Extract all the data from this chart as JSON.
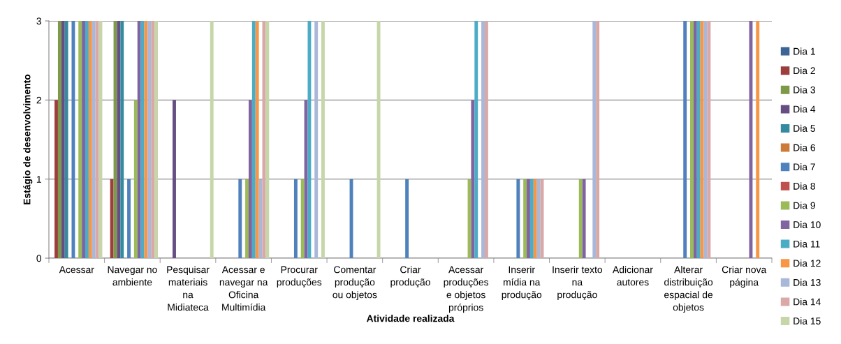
{
  "chart_data": {
    "type": "bar",
    "xlabel": "Atividade realizada",
    "ylabel": "Estágio de desenvolvimento",
    "categories": [
      "Acessar",
      "Navegar no\nambiente",
      "Pesquisar\nmateriais\nna\nMidiateca",
      "Acessar e\nnavegar na\nOficina\nMultimídia",
      "Procurar\nproduções",
      "Comentar\nprodução\nou objetos",
      "Criar\nprodução",
      "Acessar\nproduções\ne objetos\npróprios",
      "Inserir\nmídia na\nprodução",
      "Inserir texto\nna\nprodução",
      "Adicionar\nautores",
      "Alterar\ndistribuição\nespacial de\nobjetos",
      "Criar nova\npágina"
    ],
    "ylim": [
      0,
      3
    ],
    "yticks": [
      0,
      1,
      2,
      3
    ],
    "grid": "y",
    "legend": "right",
    "series": [
      {
        "name": "Dia 1",
        "color": "#3c6496",
        "values": [
          0,
          0,
          0,
          0,
          0,
          0,
          0,
          0,
          0,
          0,
          0,
          0,
          0
        ]
      },
      {
        "name": "Dia 2",
        "color": "#9c3f3c",
        "values": [
          2,
          1,
          0,
          0,
          0,
          0,
          0,
          0,
          0,
          0,
          0,
          0,
          0
        ]
      },
      {
        "name": "Dia 3",
        "color": "#7d9a48",
        "values": [
          3,
          3,
          0,
          0,
          0,
          0,
          0,
          0,
          0,
          0,
          0,
          0,
          0
        ]
      },
      {
        "name": "Dia 4",
        "color": "#664e83",
        "values": [
          3,
          3,
          2,
          0,
          0,
          0,
          0,
          0,
          0,
          0,
          0,
          0,
          0
        ]
      },
      {
        "name": "Dia 5",
        "color": "#358a9f",
        "values": [
          3,
          3,
          0,
          0,
          0,
          0,
          0,
          0,
          0,
          0,
          0,
          0,
          0
        ]
      },
      {
        "name": "Dia 6",
        "color": "#cc7b38",
        "values": [
          0,
          0,
          0,
          0,
          0,
          0,
          0,
          0,
          0,
          0,
          0,
          0,
          0
        ]
      },
      {
        "name": "Dia 7",
        "color": "#4f81bd",
        "values": [
          3,
          1,
          0,
          1,
          1,
          1,
          1,
          0,
          1,
          0,
          0,
          3,
          0
        ]
      },
      {
        "name": "Dia 8",
        "color": "#c0504d",
        "values": [
          0,
          0,
          0,
          0,
          0,
          0,
          0,
          0,
          0,
          0,
          0,
          0,
          0
        ]
      },
      {
        "name": "Dia 9",
        "color": "#9bbb59",
        "values": [
          3,
          2,
          0,
          1,
          1,
          0,
          0,
          1,
          1,
          1,
          0,
          3,
          0
        ]
      },
      {
        "name": "Dia 10",
        "color": "#8064a2",
        "values": [
          3,
          3,
          0,
          2,
          2,
          0,
          0,
          2,
          1,
          1,
          0,
          3,
          3
        ]
      },
      {
        "name": "Dia 11",
        "color": "#4bacc6",
        "values": [
          3,
          3,
          0,
          3,
          3,
          0,
          0,
          3,
          1,
          0,
          0,
          3,
          0
        ]
      },
      {
        "name": "Dia 12",
        "color": "#f79646",
        "values": [
          3,
          3,
          0,
          3,
          0,
          0,
          0,
          0,
          1,
          0,
          0,
          3,
          3
        ]
      },
      {
        "name": "Dia 13",
        "color": "#a9b8d9",
        "values": [
          3,
          3,
          0,
          1,
          3,
          0,
          0,
          3,
          1,
          3,
          0,
          3,
          0
        ]
      },
      {
        "name": "Dia 14",
        "color": "#d9a8a7",
        "values": [
          3,
          3,
          0,
          3,
          0,
          0,
          0,
          3,
          1,
          3,
          0,
          3,
          0
        ]
      },
      {
        "name": "Dia 15",
        "color": "#c6d6a9",
        "values": [
          3,
          3,
          3,
          3,
          3,
          3,
          0,
          0,
          0,
          0,
          0,
          0,
          0
        ]
      }
    ]
  }
}
